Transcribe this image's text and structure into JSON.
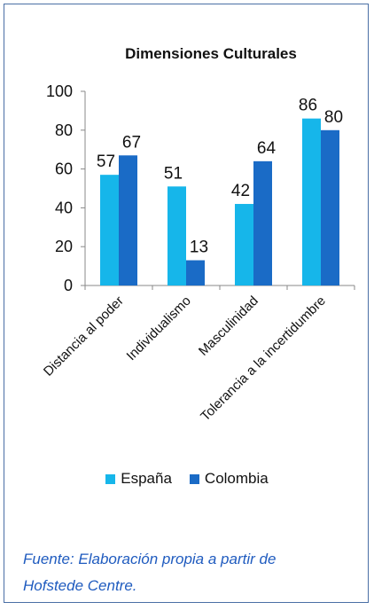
{
  "colors": {
    "espana": "#16b6ea",
    "colombia": "#1a6bc6",
    "border": "#4a6fa5",
    "source_text": "#1f5bbf"
  },
  "chart_data": {
    "type": "bar",
    "title": "Dimensiones Culturales",
    "categories": [
      "Distancia al poder",
      "Individualismo",
      "Masculinidad",
      "Tolerancia a la incertidumbre"
    ],
    "series": [
      {
        "name": "España",
        "values": [
          57,
          51,
          42,
          86
        ]
      },
      {
        "name": "Colombia",
        "values": [
          67,
          13,
          64,
          80
        ]
      }
    ],
    "ylim": [
      0,
      100
    ],
    "yticks": [
      0,
      20,
      40,
      60,
      80,
      100
    ],
    "grid": false,
    "legend": "bottom"
  },
  "source": {
    "line1": "Fuente: Elaboración propia a partir de",
    "line2": "Hofstede Centre."
  }
}
